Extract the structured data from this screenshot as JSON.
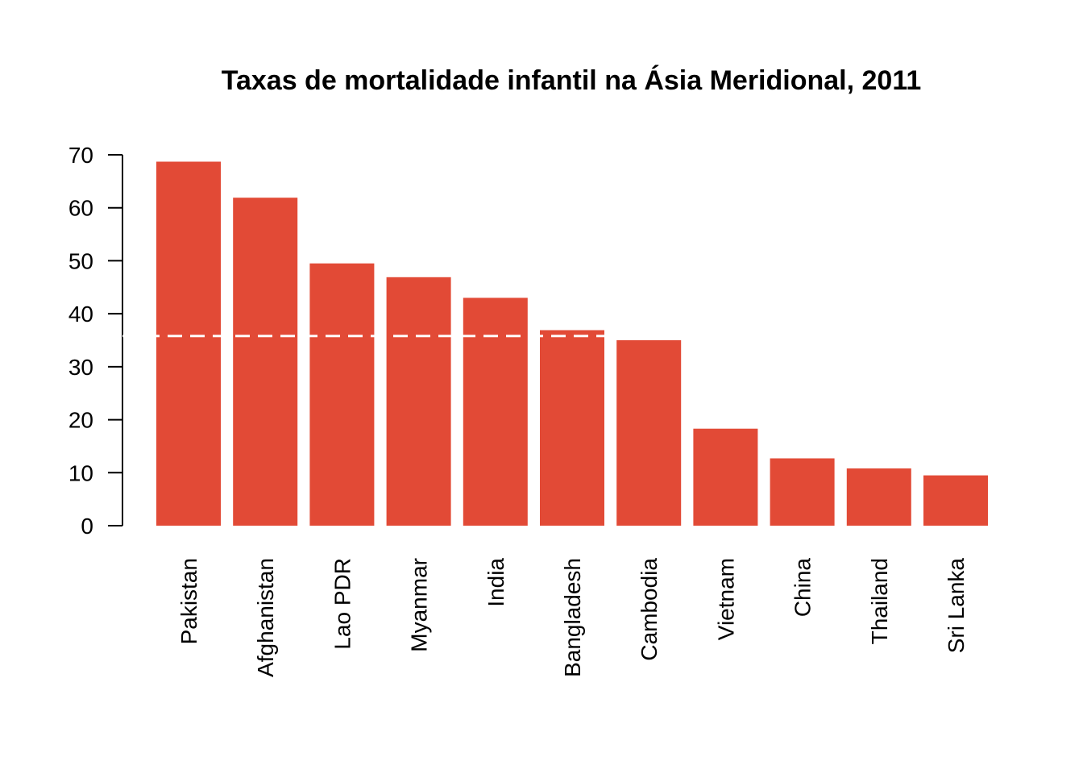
{
  "chart_data": {
    "type": "bar",
    "title": "Taxas de mortalidade infantil na Ásia Meridional, 2011",
    "xlabel": "",
    "ylabel": "",
    "categories": [
      "Pakistan",
      "Afghanistan",
      "Lao PDR",
      "Myanmar",
      "India",
      "Bangladesh",
      "Cambodia",
      "Vietnam",
      "China",
      "Thailand",
      "Sri Lanka"
    ],
    "values": [
      68.7,
      61.9,
      49.5,
      46.9,
      43.0,
      36.9,
      35.0,
      18.3,
      12.7,
      10.8,
      9.5
    ],
    "ylim": [
      0,
      70
    ],
    "yticks": [
      0,
      10,
      20,
      30,
      40,
      50,
      60,
      70
    ],
    "reference_line": {
      "value": 35.8,
      "style": "dashed",
      "color": "#ffffff"
    },
    "bar_color": "#e24a36",
    "grid": false,
    "legend": "none"
  }
}
